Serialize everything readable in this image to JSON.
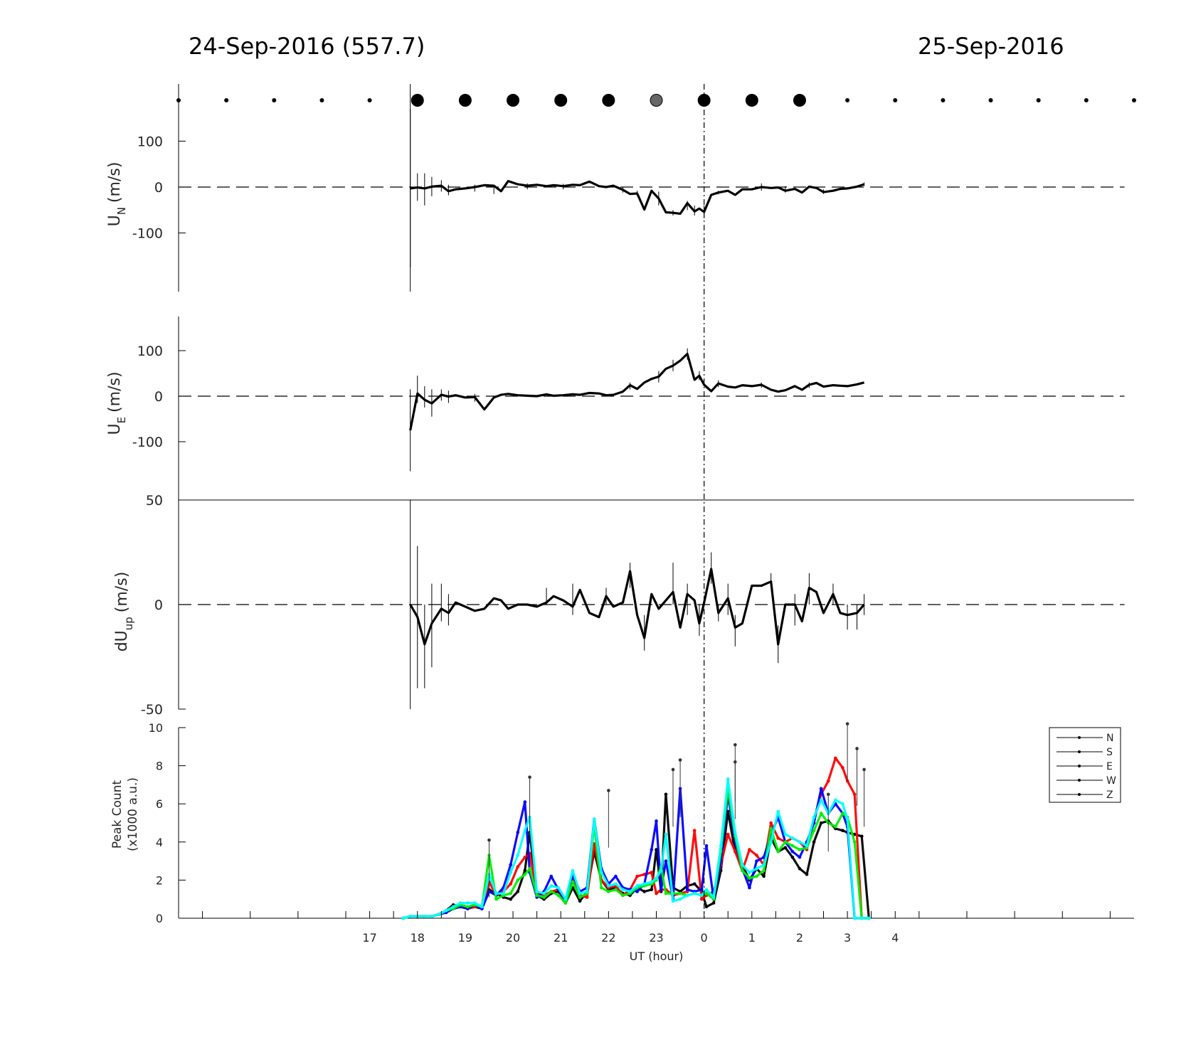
{
  "titles": {
    "left": "24-Sep-2016 (557.7)",
    "right": "25-Sep-2016"
  },
  "xaxis": {
    "label": "UT (hour)",
    "ticks": [
      "17",
      "18",
      "19",
      "20",
      "21",
      "22",
      "23",
      "0",
      "1",
      "2",
      "3",
      "4"
    ]
  },
  "markers": {
    "large_hours": [
      18,
      19,
      20,
      21,
      22,
      23,
      24,
      25,
      26
    ],
    "gray_hour": 23,
    "small_hours": [
      13,
      14,
      15,
      16,
      17,
      27,
      28,
      29,
      30,
      31,
      32,
      33
    ]
  },
  "chart_data": [
    {
      "type": "line",
      "ylabel": "U",
      "ylabel_sub": "N",
      "ylabel_unit": "(m/s)",
      "ylim": [
        -175,
        175
      ],
      "yticks": [
        "100",
        "0",
        "-100"
      ],
      "reference_line": 0,
      "x": [
        17.85,
        18.0,
        18.15,
        18.3,
        18.5,
        18.65,
        18.8,
        19.0,
        19.2,
        19.4,
        19.6,
        19.75,
        19.9,
        20.1,
        20.3,
        20.5,
        20.7,
        20.85,
        21.05,
        21.25,
        21.4,
        21.6,
        21.8,
        21.95,
        22.1,
        22.3,
        22.45,
        22.6,
        22.75,
        22.9,
        23.05,
        23.2,
        23.35,
        23.5,
        23.65,
        23.8,
        23.9,
        24.0,
        24.15,
        24.3,
        24.5,
        24.65,
        24.8,
        25.0,
        25.2,
        25.4,
        25.55,
        25.7,
        25.9,
        26.05,
        26.2,
        26.35,
        26.5,
        26.7,
        26.85,
        27.0,
        27.2,
        27.35
      ],
      "y": [
        -3,
        -1,
        -3,
        1,
        3,
        -9,
        -5,
        -3,
        0,
        4,
        3,
        -9,
        13,
        6,
        3,
        5,
        2,
        4,
        2,
        5,
        4,
        12,
        2,
        0,
        3,
        -6,
        -15,
        -14,
        -49,
        -8,
        -25,
        -55,
        -56,
        -58,
        -35,
        -53,
        -47,
        -54,
        -17,
        -12,
        -8,
        -17,
        -5,
        -5,
        0,
        -2,
        -1,
        -8,
        -4,
        -12,
        1,
        -2,
        -11,
        -8,
        -4,
        -3,
        1,
        6
      ],
      "errorbars": [
        [
          17.85,
          -175,
          170
        ],
        [
          18.0,
          -30,
          30
        ],
        [
          18.15,
          -40,
          30
        ],
        [
          18.3,
          -20,
          22
        ],
        [
          18.5,
          -10,
          15
        ],
        [
          18.65,
          -18,
          5
        ],
        [
          19.2,
          -10,
          5
        ],
        [
          19.6,
          -15,
          5
        ],
        [
          20.3,
          -5,
          8
        ],
        [
          21.05,
          -5,
          7
        ],
        [
          22.3,
          -12,
          0
        ],
        [
          22.6,
          -20,
          -8
        ],
        [
          23.05,
          -40,
          -10
        ],
        [
          23.35,
          -62,
          -50
        ],
        [
          23.65,
          -50,
          -30
        ],
        [
          23.8,
          -62,
          -40
        ],
        [
          24.0,
          -68,
          -40
        ],
        [
          24.3,
          -16,
          -8
        ],
        [
          25.2,
          -8,
          8
        ],
        [
          25.7,
          -12,
          2
        ],
        [
          26.5,
          -15,
          -5
        ],
        [
          27.35,
          2,
          10
        ]
      ]
    },
    {
      "type": "line",
      "ylabel": "U",
      "ylabel_sub": "E",
      "ylabel_unit": "(m/s)",
      "ylim": [
        -175,
        175
      ],
      "yticks": [
        "100",
        "0",
        "-100"
      ],
      "reference_line": 0,
      "x": [
        17.85,
        18.0,
        18.15,
        18.3,
        18.5,
        18.65,
        18.8,
        19.0,
        19.2,
        19.4,
        19.6,
        19.75,
        19.9,
        20.1,
        20.3,
        20.5,
        20.7,
        20.85,
        21.05,
        21.25,
        21.4,
        21.6,
        21.8,
        21.95,
        22.1,
        22.3,
        22.45,
        22.6,
        22.75,
        22.9,
        23.05,
        23.2,
        23.35,
        23.5,
        23.65,
        23.8,
        23.9,
        24.0,
        24.15,
        24.3,
        24.5,
        24.65,
        24.8,
        25.0,
        25.2,
        25.4,
        25.55,
        25.7,
        25.9,
        26.05,
        26.2,
        26.35,
        26.5,
        26.7,
        26.85,
        27.0,
        27.2,
        27.35
      ],
      "y": [
        -75,
        6,
        -8,
        -16,
        3,
        -1,
        2,
        -3,
        -2,
        -29,
        -3,
        3,
        5,
        2,
        1,
        0,
        4,
        1,
        2,
        4,
        3,
        7,
        6,
        2,
        3,
        10,
        24,
        16,
        30,
        38,
        43,
        60,
        67,
        78,
        93,
        36,
        45,
        25,
        11,
        28,
        21,
        19,
        24,
        22,
        25,
        14,
        10,
        13,
        22,
        14,
        25,
        29,
        21,
        24,
        23,
        22,
        26,
        30
      ],
      "errorbars": [
        [
          17.85,
          -165,
          15
        ],
        [
          18.0,
          -15,
          45
        ],
        [
          18.15,
          -25,
          22
        ],
        [
          18.3,
          -45,
          15
        ],
        [
          18.5,
          -10,
          15
        ],
        [
          18.65,
          -15,
          12
        ],
        [
          19.2,
          -12,
          5
        ],
        [
          22.45,
          15,
          30
        ],
        [
          23.05,
          30,
          55
        ],
        [
          23.35,
          55,
          80
        ],
        [
          23.65,
          80,
          105
        ],
        [
          23.9,
          35,
          55
        ],
        [
          24.3,
          20,
          35
        ],
        [
          25.2,
          18,
          30
        ],
        [
          26.2,
          18,
          30
        ]
      ]
    },
    {
      "type": "line",
      "ylabel": "dU",
      "ylabel_sub": "up",
      "ylabel_unit": "(m/s)",
      "ylim": [
        -50,
        50
      ],
      "yticks": [
        "50",
        "0",
        "-50"
      ],
      "reference_line": 0,
      "x": [
        17.85,
        18.0,
        18.15,
        18.3,
        18.5,
        18.65,
        18.8,
        19.0,
        19.2,
        19.4,
        19.6,
        19.75,
        19.9,
        20.1,
        20.3,
        20.5,
        20.7,
        20.85,
        21.05,
        21.25,
        21.4,
        21.6,
        21.8,
        21.95,
        22.1,
        22.3,
        22.45,
        22.6,
        22.75,
        22.9,
        23.05,
        23.2,
        23.35,
        23.5,
        23.65,
        23.8,
        23.9,
        24.0,
        24.15,
        24.3,
        24.5,
        24.65,
        24.8,
        25.0,
        25.2,
        25.4,
        25.55,
        25.7,
        25.9,
        26.05,
        26.2,
        26.35,
        26.5,
        26.7,
        26.85,
        27.0,
        27.2,
        27.35
      ],
      "y": [
        0,
        -6,
        -19,
        -9,
        -2,
        -4,
        1,
        -1,
        -3,
        -2,
        3,
        2,
        -2,
        0,
        0,
        -1,
        1,
        4,
        2,
        -1,
        7,
        -4,
        -6,
        4,
        -1,
        1,
        16,
        -5,
        -16,
        5,
        -2,
        2,
        6,
        -11,
        5,
        2,
        -9,
        1,
        17,
        -4,
        3,
        -11,
        -9,
        9,
        9,
        11,
        -19,
        0,
        0,
        -8,
        8,
        6,
        -4,
        5,
        -4,
        -5,
        -4,
        0
      ],
      "errorbars": [
        [
          17.85,
          -50,
          50
        ],
        [
          18.0,
          -40,
          28
        ],
        [
          18.15,
          -40,
          0
        ],
        [
          18.3,
          -30,
          10
        ],
        [
          18.5,
          -8,
          10
        ],
        [
          18.65,
          -10,
          5
        ],
        [
          20.7,
          0,
          8
        ],
        [
          21.25,
          -5,
          10
        ],
        [
          21.95,
          0,
          8
        ],
        [
          22.45,
          8,
          20
        ],
        [
          22.75,
          -22,
          -5
        ],
        [
          23.35,
          0,
          20
        ],
        [
          23.65,
          -5,
          10
        ],
        [
          23.9,
          -15,
          0
        ],
        [
          24.15,
          10,
          25
        ],
        [
          24.3,
          -8,
          0
        ],
        [
          24.5,
          -5,
          10
        ],
        [
          24.65,
          -20,
          -5
        ],
        [
          25.4,
          8,
          15
        ],
        [
          25.55,
          -28,
          -10
        ],
        [
          25.9,
          -10,
          5
        ],
        [
          26.2,
          0,
          15
        ],
        [
          26.7,
          0,
          10
        ],
        [
          27.0,
          -12,
          0
        ],
        [
          27.2,
          -12,
          0
        ],
        [
          27.35,
          -5,
          5
        ]
      ]
    },
    {
      "type": "line",
      "ylabel": "Peak Count",
      "ylabel_line2": "(x1000 a.u.)",
      "ylim": [
        0,
        10
      ],
      "yticks": [
        "10",
        "8",
        "6",
        "4",
        "2",
        "0"
      ],
      "xlim": [
        13,
        33
      ],
      "baseline_dashed": true,
      "legend": {
        "entries": [
          "N",
          "S",
          "E",
          "W",
          "Z"
        ],
        "placement": "top-right"
      },
      "x": [
        17.7,
        17.85,
        18.0,
        18.15,
        18.3,
        18.45,
        18.6,
        18.75,
        18.9,
        19.05,
        19.2,
        19.35,
        19.5,
        19.65,
        19.8,
        19.95,
        20.1,
        20.25,
        20.35,
        20.5,
        20.65,
        20.8,
        20.95,
        21.1,
        21.25,
        21.4,
        21.55,
        21.7,
        21.85,
        22.0,
        22.15,
        22.3,
        22.45,
        22.6,
        22.75,
        22.9,
        23.0,
        23.1,
        23.2,
        23.35,
        23.5,
        23.65,
        23.8,
        23.95,
        24.05,
        24.2,
        24.35,
        24.5,
        24.65,
        24.8,
        24.95,
        25.1,
        25.25,
        25.4,
        25.55,
        25.7,
        25.85,
        26.0,
        26.15,
        26.3,
        26.45,
        26.6,
        26.75,
        26.9,
        27.0,
        27.15,
        27.3,
        27.45
      ],
      "series": [
        {
          "name": "N",
          "color": "#000000",
          "values": [
            0.0,
            0.1,
            0.1,
            0.1,
            0.1,
            0.2,
            0.4,
            0.7,
            0.6,
            0.5,
            0.6,
            0.5,
            1.5,
            1.3,
            1.1,
            1.0,
            1.4,
            2.5,
            4.5,
            1.2,
            1.0,
            1.3,
            1.4,
            0.8,
            1.6,
            0.9,
            1.4,
            3.5,
            2.0,
            1.5,
            1.6,
            1.3,
            1.2,
            1.6,
            1.4,
            1.5,
            3.6,
            1.4,
            6.5,
            1.6,
            1.4,
            1.7,
            1.8,
            1.4,
            0.6,
            0.8,
            2.5,
            5.6,
            3.5,
            2.8,
            2.0,
            2.6,
            2.2,
            4.2,
            3.5,
            3.7,
            3.2,
            2.6,
            2.3,
            4.0,
            5.0,
            5.1,
            4.7,
            4.6,
            4.5,
            4.4,
            4.3,
            0.0
          ]
        },
        {
          "name": "S",
          "color": "#ff0000",
          "values": [
            0.0,
            0.1,
            0.1,
            0.1,
            0.1,
            0.2,
            0.3,
            0.5,
            0.6,
            0.5,
            0.6,
            0.6,
            1.9,
            1.2,
            1.4,
            1.8,
            2.7,
            3.2,
            3.4,
            1.3,
            1.2,
            1.4,
            1.5,
            1.0,
            2.0,
            1.2,
            1.1,
            3.9,
            2.0,
            1.6,
            1.7,
            1.2,
            1.5,
            2.2,
            2.3,
            2.4,
            1.3,
            1.5,
            1.5,
            1.2,
            1.3,
            1.4,
            4.6,
            1.0,
            1.2,
            1.4,
            2.8,
            4.4,
            3.5,
            2.5,
            3.6,
            3.3,
            2.8,
            5.0,
            4.2,
            4.0,
            4.2,
            4.0,
            3.6,
            5.2,
            6.5,
            7.2,
            8.4,
            7.9,
            7.2,
            6.5,
            0.0,
            0.0
          ]
        },
        {
          "name": "E",
          "color": "#0000ff",
          "values": [
            0.0,
            0.1,
            0.1,
            0.1,
            0.1,
            0.2,
            0.3,
            0.5,
            0.6,
            0.5,
            0.7,
            0.5,
            1.4,
            1.2,
            1.6,
            2.8,
            4.5,
            6.1,
            2.4,
            1.1,
            1.4,
            2.2,
            1.5,
            0.9,
            2.3,
            1.4,
            1.6,
            5.2,
            2.6,
            1.8,
            2.2,
            1.6,
            1.5,
            1.4,
            1.8,
            3.6,
            5.1,
            1.5,
            3.0,
            1.0,
            6.8,
            1.5,
            1.4,
            1.5,
            3.8,
            1.0,
            3.0,
            6.5,
            4.0,
            2.6,
            1.6,
            3.0,
            3.2,
            4.4,
            5.3,
            4.0,
            3.5,
            3.2,
            4.0,
            5.0,
            6.8,
            5.5,
            6.0,
            5.5,
            4.8,
            0.0,
            0.0,
            0.0
          ]
        },
        {
          "name": "W",
          "color": "#00ee00",
          "values": [
            0.0,
            0.1,
            0.1,
            0.1,
            0.1,
            0.2,
            0.4,
            0.5,
            0.7,
            0.6,
            0.7,
            0.6,
            3.3,
            1.0,
            1.2,
            1.3,
            2.0,
            2.3,
            2.6,
            1.2,
            1.1,
            1.4,
            1.2,
            0.8,
            1.9,
            1.1,
            1.3,
            4.9,
            1.6,
            1.4,
            1.5,
            1.2,
            1.3,
            1.6,
            1.7,
            1.8,
            2.0,
            2.7,
            1.3,
            1.3,
            1.3,
            1.2,
            1.3,
            1.2,
            1.3,
            1.0,
            3.5,
            6.8,
            4.3,
            2.5,
            2.1,
            2.2,
            2.5,
            4.7,
            3.5,
            4.0,
            3.8,
            3.6,
            3.7,
            4.6,
            5.5,
            5.0,
            4.8,
            5.5,
            5.3,
            4.0,
            0.0,
            0.0
          ]
        },
        {
          "name": "Z",
          "color": "#00ffff",
          "values": [
            0.0,
            0.1,
            0.1,
            0.1,
            0.1,
            0.2,
            0.4,
            0.6,
            0.8,
            0.8,
            0.8,
            0.6,
            2.3,
            1.3,
            1.3,
            2.4,
            3.3,
            4.6,
            5.3,
            1.4,
            1.3,
            1.7,
            1.6,
            1.0,
            2.5,
            1.3,
            1.4,
            5.2,
            2.4,
            1.7,
            1.8,
            1.5,
            1.4,
            1.7,
            1.8,
            1.9,
            2.1,
            2.5,
            4.4,
            0.9,
            1.0,
            1.2,
            1.3,
            1.2,
            1.5,
            1.1,
            3.8,
            7.3,
            4.5,
            2.8,
            2.4,
            2.6,
            2.8,
            4.0,
            5.6,
            4.4,
            4.2,
            4.0,
            3.8,
            5.3,
            6.2,
            5.5,
            6.2,
            6.0,
            5.2,
            0.0,
            0.0,
            0.0
          ]
        }
      ],
      "point_maxima": [
        [
          19.5,
          4.1
        ],
        [
          20.35,
          7.4
        ],
        [
          22.0,
          6.7
        ],
        [
          23.35,
          7.8
        ],
        [
          23.5,
          8.3
        ],
        [
          24.65,
          9.1
        ],
        [
          24.65,
          8.2
        ],
        [
          26.6,
          6.5
        ],
        [
          27.0,
          10.2
        ],
        [
          27.2,
          8.9
        ],
        [
          27.35,
          7.8
        ]
      ]
    }
  ]
}
